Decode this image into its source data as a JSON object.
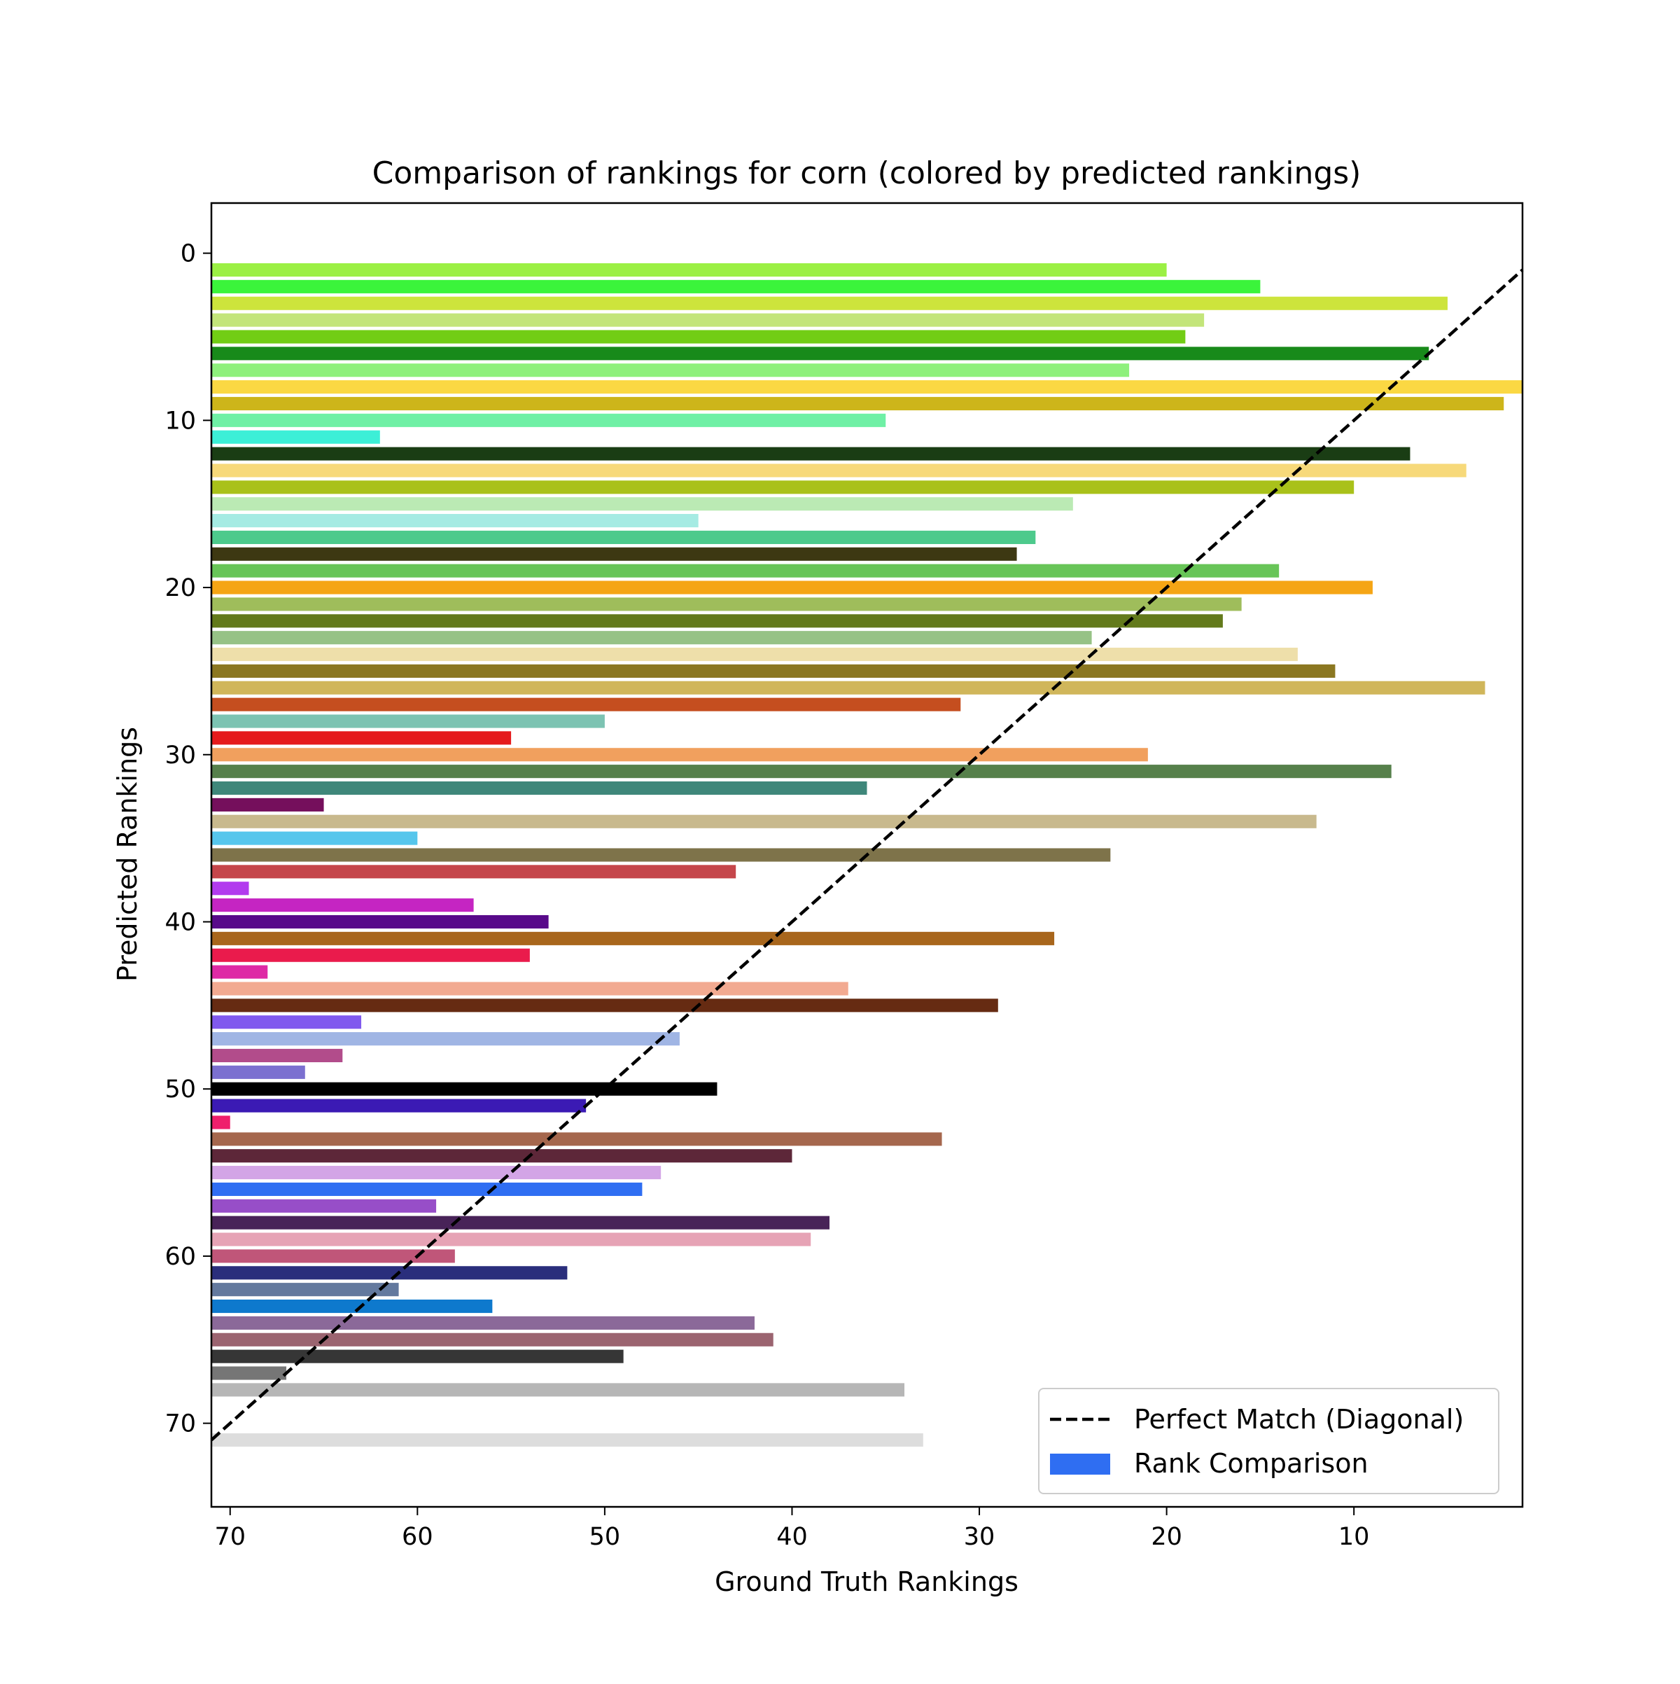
{
  "chart_data": {
    "type": "bar",
    "orientation": "horizontal",
    "title": "Comparison of rankings for corn (colored by predicted rankings)",
    "xlabel": "Ground Truth Rankings",
    "ylabel": "Predicted Rankings",
    "xlim": [
      71,
      1
    ],
    "ylim": [
      75,
      -3
    ],
    "x_ticks": [
      "70",
      "60",
      "50",
      "40",
      "30",
      "20",
      "10"
    ],
    "y_ticks": [
      "0",
      "10",
      "20",
      "30",
      "40",
      "50",
      "60",
      "70"
    ],
    "x_tick_values": [
      70,
      60,
      50,
      40,
      30,
      20,
      10
    ],
    "y_tick_values": [
      0,
      10,
      20,
      30,
      40,
      50,
      60,
      70
    ],
    "grid": false,
    "legend_position": "lower right",
    "legend": [
      {
        "label": "Perfect Match (Diagonal)",
        "style": "dashed-line",
        "color": "#000000"
      },
      {
        "label": "Rank Comparison",
        "style": "patch",
        "color": "#2f6ef2"
      }
    ],
    "diagonal": {
      "from": [
        71,
        71
      ],
      "to": [
        1,
        1
      ],
      "color": "#000000"
    },
    "bars": [
      {
        "predicted": 1,
        "ground_truth": 20,
        "color": "#9bf044"
      },
      {
        "predicted": 2,
        "ground_truth": 15,
        "color": "#3bf43b"
      },
      {
        "predicted": 3,
        "ground_truth": 5,
        "color": "#cde43c"
      },
      {
        "predicted": 4,
        "ground_truth": 18,
        "color": "#c3e57a"
      },
      {
        "predicted": 5,
        "ground_truth": 19,
        "color": "#72cd15"
      },
      {
        "predicted": 6,
        "ground_truth": 6,
        "color": "#188a1a"
      },
      {
        "predicted": 7,
        "ground_truth": 22,
        "color": "#8ef07c"
      },
      {
        "predicted": 8,
        "ground_truth": 1,
        "color": "#fbd843"
      },
      {
        "predicted": 9,
        "ground_truth": 2,
        "color": "#cdb51a"
      },
      {
        "predicted": 10,
        "ground_truth": 35,
        "color": "#6ff0a5"
      },
      {
        "predicted": 11,
        "ground_truth": 62,
        "color": "#3cefd7"
      },
      {
        "predicted": 12,
        "ground_truth": 7,
        "color": "#1a3d14"
      },
      {
        "predicted": 13,
        "ground_truth": 4,
        "color": "#f7d97a"
      },
      {
        "predicted": 14,
        "ground_truth": 10,
        "color": "#a9c11a"
      },
      {
        "predicted": 15,
        "ground_truth": 25,
        "color": "#bbeab4"
      },
      {
        "predicted": 16,
        "ground_truth": 45,
        "color": "#a5ebe3"
      },
      {
        "predicted": 17,
        "ground_truth": 27,
        "color": "#4dca8c"
      },
      {
        "predicted": 18,
        "ground_truth": 28,
        "color": "#3d3812"
      },
      {
        "predicted": 19,
        "ground_truth": 14,
        "color": "#68c558"
      },
      {
        "predicted": 20,
        "ground_truth": 9,
        "color": "#f5a515"
      },
      {
        "predicted": 21,
        "ground_truth": 16,
        "color": "#9fbd5b"
      },
      {
        "predicted": 22,
        "ground_truth": 17,
        "color": "#637a1b"
      },
      {
        "predicted": 23,
        "ground_truth": 24,
        "color": "#96c286"
      },
      {
        "predicted": 24,
        "ground_truth": 13,
        "color": "#eedfaa"
      },
      {
        "predicted": 25,
        "ground_truth": 11,
        "color": "#8b7721"
      },
      {
        "predicted": 26,
        "ground_truth": 3,
        "color": "#d0b65a"
      },
      {
        "predicted": 27,
        "ground_truth": 31,
        "color": "#c54e1f"
      },
      {
        "predicted": 28,
        "ground_truth": 50,
        "color": "#7cc3b2"
      },
      {
        "predicted": 29,
        "ground_truth": 55,
        "color": "#e51a1c"
      },
      {
        "predicted": 30,
        "ground_truth": 21,
        "color": "#f1a05e"
      },
      {
        "predicted": 31,
        "ground_truth": 8,
        "color": "#56804b"
      },
      {
        "predicted": 32,
        "ground_truth": 36,
        "color": "#3f877a"
      },
      {
        "predicted": 33,
        "ground_truth": 65,
        "color": "#750f5c"
      },
      {
        "predicted": 34,
        "ground_truth": 12,
        "color": "#c8b98d"
      },
      {
        "predicted": 35,
        "ground_truth": 60,
        "color": "#56c6ec"
      },
      {
        "predicted": 36,
        "ground_truth": 23,
        "color": "#7e734a"
      },
      {
        "predicted": 37,
        "ground_truth": 43,
        "color": "#c5464b"
      },
      {
        "predicted": 38,
        "ground_truth": 69,
        "color": "#b23bee"
      },
      {
        "predicted": 39,
        "ground_truth": 57,
        "color": "#c525c2"
      },
      {
        "predicted": 40,
        "ground_truth": 53,
        "color": "#580a8a"
      },
      {
        "predicted": 41,
        "ground_truth": 26,
        "color": "#a8661c"
      },
      {
        "predicted": 42,
        "ground_truth": 54,
        "color": "#ea1b4c"
      },
      {
        "predicted": 43,
        "ground_truth": 68,
        "color": "#de2aa5"
      },
      {
        "predicted": 44,
        "ground_truth": 37,
        "color": "#f2aa91"
      },
      {
        "predicted": 45,
        "ground_truth": 29,
        "color": "#662b12"
      },
      {
        "predicted": 46,
        "ground_truth": 63,
        "color": "#8059ee"
      },
      {
        "predicted": 47,
        "ground_truth": 46,
        "color": "#a0b5e4"
      },
      {
        "predicted": 48,
        "ground_truth": 64,
        "color": "#b24c8b"
      },
      {
        "predicted": 49,
        "ground_truth": 66,
        "color": "#7b70d0"
      },
      {
        "predicted": 50,
        "ground_truth": 44,
        "color": "#000000"
      },
      {
        "predicted": 51,
        "ground_truth": 51,
        "color": "#3b1ab4"
      },
      {
        "predicted": 52,
        "ground_truth": 70,
        "color": "#ef1f6c"
      },
      {
        "predicted": 53,
        "ground_truth": 32,
        "color": "#a5674d"
      },
      {
        "predicted": 54,
        "ground_truth": 40,
        "color": "#5d2739"
      },
      {
        "predicted": 55,
        "ground_truth": 47,
        "color": "#d3a5e6"
      },
      {
        "predicted": 56,
        "ground_truth": 48,
        "color": "#2f6ef2"
      },
      {
        "predicted": 57,
        "ground_truth": 59,
        "color": "#974ec8"
      },
      {
        "predicted": 58,
        "ground_truth": 38,
        "color": "#482358"
      },
      {
        "predicted": 59,
        "ground_truth": 39,
        "color": "#e6a3b5"
      },
      {
        "predicted": 60,
        "ground_truth": 58,
        "color": "#c05679"
      },
      {
        "predicted": 61,
        "ground_truth": 52,
        "color": "#2a2e7c"
      },
      {
        "predicted": 62,
        "ground_truth": 61,
        "color": "#63799e"
      },
      {
        "predicted": 63,
        "ground_truth": 56,
        "color": "#0e79cd"
      },
      {
        "predicted": 64,
        "ground_truth": 42,
        "color": "#8b6999"
      },
      {
        "predicted": 65,
        "ground_truth": 41,
        "color": "#9b6470"
      },
      {
        "predicted": 66,
        "ground_truth": 49,
        "color": "#363636"
      },
      {
        "predicted": 67,
        "ground_truth": 67,
        "color": "#767676"
      },
      {
        "predicted": 68,
        "ground_truth": 34,
        "color": "#b6b6b6"
      },
      {
        "predicted": 71,
        "ground_truth": 33,
        "color": "#dddddd"
      }
    ]
  }
}
